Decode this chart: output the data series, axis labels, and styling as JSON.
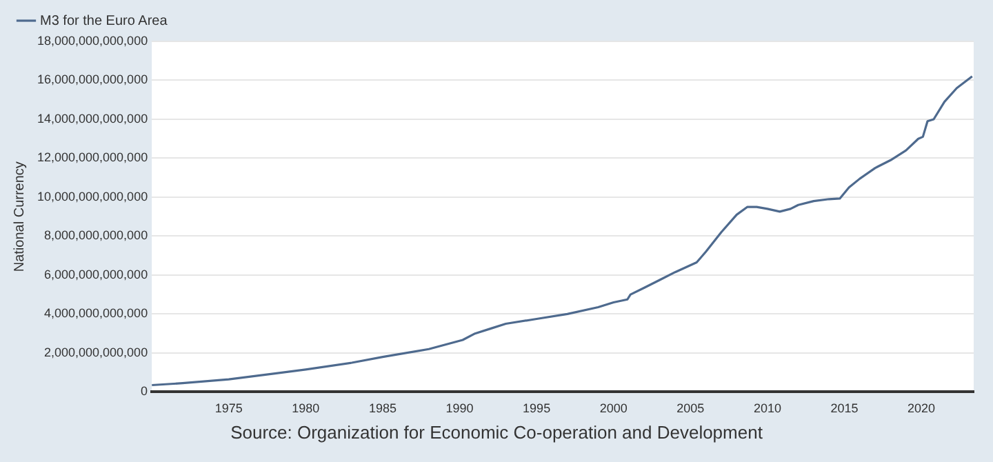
{
  "chart_data": {
    "type": "line",
    "ylabel": "National Currency",
    "legend": "top left",
    "grid": "y",
    "marker": "none",
    "line_style": "solid",
    "series": [
      {
        "name": "M3 for the Euro Area",
        "color": "#4e6a8e",
        "x": [
          1970,
          1972,
          1975,
          1978,
          1980,
          1983,
          1985,
          1988,
          1990.2,
          1991,
          1992,
          1993,
          1995,
          1997,
          1999,
          2000,
          2000.9,
          2001.1,
          2002,
          2003,
          2004,
          2005.4,
          2006,
          2007,
          2008,
          2008.7,
          2009.3,
          2010,
          2010.8,
          2011.5,
          2012,
          2013,
          2014,
          2014.7,
          2015.3,
          2016,
          2017,
          2018,
          2019,
          2019.8,
          2020.1,
          2020.4,
          2020.8,
          2021.5,
          2022.3,
          2023.3
        ],
        "values": [
          350000000000.0,
          450000000000.0,
          650000000000.0,
          950000000000.0,
          1150000000000.0,
          1500000000000.0,
          1800000000000.0,
          2200000000000.0,
          2670000000000.0,
          3000000000000.0,
          3250000000000.0,
          3500000000000.0,
          3750000000000.0,
          4000000000000.0,
          4350000000000.0,
          4600000000000.0,
          4750000000000.0,
          5000000000000.0,
          5350000000000.0,
          5750000000000.0,
          6150000000000.0,
          6650000000000.0,
          7200000000000.0,
          8200000000000.0,
          9100000000000.0,
          9500000000000.0,
          9500000000000.0,
          9400000000000.0,
          9260000000000.0,
          9400000000000.0,
          9600000000000.0,
          9800000000000.0,
          9900000000000.0,
          9930000000000.0,
          10500000000000.0,
          10950000000000.0,
          11500000000000.0,
          11900000000000.0,
          12400000000000.0,
          13000000000000.0,
          13100000000000.0,
          13900000000000.0,
          14000000000000.0,
          14900000000000.0,
          15600000000000.0,
          16200000000000.0
        ]
      }
    ],
    "xlim": [
      1970,
      2023.4
    ],
    "xticks": [
      1975,
      1980,
      1985,
      1990,
      1995,
      2000,
      2005,
      2010,
      2015,
      2020
    ],
    "ylim": [
      0,
      18000000000000.0
    ],
    "yticks": [
      0,
      {
        "value": 2000000000000.0,
        "label": "2,000,000,000,000"
      },
      {
        "value": 4000000000000.0,
        "label": "4,000,000,000,000"
      },
      {
        "value": 6000000000000.0,
        "label": "6,000,000,000,000"
      },
      {
        "value": 8000000000000.0,
        "label": "8,000,000,000,000"
      },
      {
        "value": 10000000000000.0,
        "label": "10,000,000,000,000"
      },
      {
        "value": 12000000000000.0,
        "label": "12,000,000,000,000"
      },
      {
        "value": 14000000000000.0,
        "label": "14,000,000,000,000"
      },
      {
        "value": 16000000000000.0,
        "label": "16,000,000,000,000"
      },
      {
        "value": 18000000000000.0,
        "label": "18,000,000,000,000"
      }
    ],
    "annotations": [
      "Source: Organization for Economic Co-operation and Development"
    ]
  }
}
